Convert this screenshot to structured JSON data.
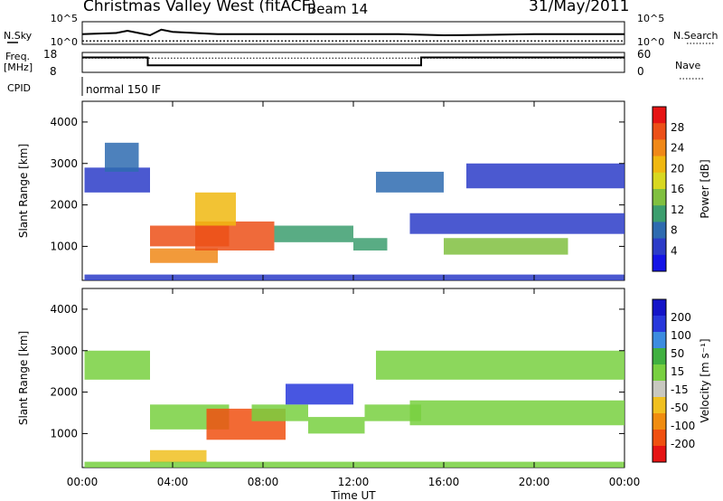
{
  "header": {
    "site_title": "Christmas Valley West (fitACF)",
    "beam": "Beam 14",
    "date": "31/May/2011"
  },
  "chart_data": [
    {
      "type": "line",
      "panel": "noise",
      "left_label": "N.Sky",
      "right_label": "N.Search",
      "left_ticks": [
        "10^5",
        "10^0"
      ],
      "right_ticks": [
        "10^5",
        "10^0"
      ],
      "x": [
        0,
        1.5,
        2.0,
        2.5,
        3.0,
        3.5,
        4.0,
        6,
        8,
        10,
        12,
        14,
        16,
        18,
        20,
        22,
        24
      ],
      "sky_level": [
        0.45,
        0.5,
        0.6,
        0.5,
        0.4,
        0.65,
        0.55,
        0.45,
        0.45,
        0.45,
        0.45,
        0.45,
        0.4,
        0.42,
        0.45,
        0.45,
        0.45
      ],
      "search_level": [
        0.15,
        0.15,
        0.15,
        0.15,
        0.15,
        0.15,
        0.15,
        0.15,
        0.15,
        0.15,
        0.15,
        0.15,
        0.15,
        0.15,
        0.15,
        0.15,
        0.15
      ]
    },
    {
      "type": "line",
      "panel": "frequency",
      "left_label": "Freq. [MHz]",
      "right_label": "Nave",
      "left_ticks": [
        "18",
        "8"
      ],
      "right_ticks": [
        "60",
        "0"
      ],
      "x": [
        0,
        2.9,
        2.9,
        15.0,
        15.0,
        24
      ],
      "freq_mhz": [
        15.5,
        15.5,
        11.5,
        11.5,
        15.5,
        15.5
      ],
      "nave_x": [
        0,
        24
      ],
      "nave": [
        43,
        43
      ]
    },
    {
      "type": "table",
      "panel": "cpid",
      "label": "CPID",
      "program": "normal 150 IF"
    },
    {
      "type": "heatmap",
      "panel": "power",
      "ylabel": "Slant Range [km]",
      "yticks": [
        1000,
        2000,
        3000,
        4000
      ],
      "ylim": [
        180,
        4500
      ],
      "xlim": [
        0,
        24
      ],
      "colorbar_label": "Power [dB]",
      "colorbar_ticks": [
        "28",
        "24",
        "20",
        "16",
        "12",
        "8",
        "4"
      ],
      "colorbar_colors": [
        "#1414e6",
        "#2c3cc8",
        "#2e6bb0",
        "#3c9e6e",
        "#80c040",
        "#d8d820",
        "#f0b810",
        "#f08818",
        "#ec5018",
        "#e61414"
      ],
      "regions": [
        {
          "t0": 0.1,
          "t1": 3.0,
          "r0": 2300,
          "r1": 2900,
          "value": 6
        },
        {
          "t0": 1.0,
          "t1": 2.5,
          "r0": 2800,
          "r1": 3500,
          "value": 8
        },
        {
          "t0": 3.0,
          "t1": 6.5,
          "r0": 1000,
          "r1": 1500,
          "value": 26
        },
        {
          "t0": 3.0,
          "t1": 6.0,
          "r0": 600,
          "r1": 950,
          "value": 24
        },
        {
          "t0": 5.0,
          "t1": 8.5,
          "r0": 900,
          "r1": 1600,
          "value": 28
        },
        {
          "t0": 5.0,
          "t1": 6.8,
          "r0": 1500,
          "r1": 2300,
          "value": 22
        },
        {
          "t0": 8.5,
          "t1": 12.0,
          "r0": 1100,
          "r1": 1500,
          "value": 10
        },
        {
          "t0": 12.0,
          "t1": 13.5,
          "r0": 900,
          "r1": 1200,
          "value": 12
        },
        {
          "t0": 13.0,
          "t1": 16.0,
          "r0": 2300,
          "r1": 2800,
          "value": 8
        },
        {
          "t0": 14.5,
          "t1": 24.0,
          "r0": 1300,
          "r1": 1800,
          "value": 6
        },
        {
          "t0": 16.0,
          "t1": 21.5,
          "r0": 800,
          "r1": 1200,
          "value": 14
        },
        {
          "t0": 17.0,
          "t1": 24.0,
          "r0": 2400,
          "r1": 3000,
          "value": 5
        },
        {
          "t0": 0.1,
          "t1": 24.0,
          "r0": 180,
          "r1": 320,
          "value": 6
        }
      ]
    },
    {
      "type": "heatmap",
      "panel": "velocity",
      "ylabel": "Slant Range [km]",
      "yticks": [
        1000,
        2000,
        3000,
        4000
      ],
      "ylim": [
        180,
        4500
      ],
      "xlim": [
        0,
        24
      ],
      "xticks": [
        "00:00",
        "04:00",
        "08:00",
        "12:00",
        "16:00",
        "20:00",
        "00:00"
      ],
      "xtick_hours": [
        0,
        4,
        8,
        12,
        16,
        20,
        24
      ],
      "xlabel": "Time UT",
      "colorbar_label": "Velocity [m s⁻¹]",
      "colorbar_ticks": [
        "200",
        "100",
        "50",
        "15",
        "-15",
        "-50",
        "-100",
        "-200"
      ],
      "colorbar_colors": [
        "#1414c8",
        "#2838dc",
        "#3c8ce0",
        "#40b040",
        "#78d040",
        "#c8c8c0",
        "#f0c020",
        "#f08c10",
        "#f05010",
        "#e61414"
      ],
      "regions": [
        {
          "t0": 0.1,
          "t1": 3.0,
          "r0": 2300,
          "r1": 3000,
          "value": 0
        },
        {
          "t0": 3.0,
          "t1": 6.5,
          "r0": 1100,
          "r1": 1700,
          "value": 0
        },
        {
          "t0": 3.0,
          "t1": 5.5,
          "r0": 300,
          "r1": 600,
          "value": -80
        },
        {
          "t0": 5.5,
          "t1": 9.0,
          "r0": 850,
          "r1": 1600,
          "value": -180
        },
        {
          "t0": 7.5,
          "t1": 10.0,
          "r0": 1300,
          "r1": 1700,
          "value": 30
        },
        {
          "t0": 9.0,
          "t1": 12.0,
          "r0": 1700,
          "r1": 2200,
          "value": 180
        },
        {
          "t0": 10.0,
          "t1": 12.5,
          "r0": 1000,
          "r1": 1400,
          "value": 40
        },
        {
          "t0": 12.5,
          "t1": 15.0,
          "r0": 1300,
          "r1": 1700,
          "value": 25
        },
        {
          "t0": 14.5,
          "t1": 24.0,
          "r0": 1200,
          "r1": 1800,
          "value": 0
        },
        {
          "t0": 13.0,
          "t1": 24.0,
          "r0": 2300,
          "r1": 3000,
          "value": 0
        },
        {
          "t0": 0.1,
          "t1": 24.0,
          "r0": 180,
          "r1": 320,
          "value": 20
        }
      ]
    }
  ]
}
